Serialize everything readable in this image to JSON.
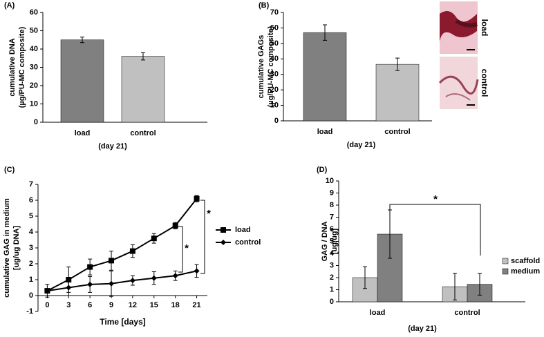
{
  "chart_data": [
    {
      "type": "bar",
      "panel": "(A)",
      "ylabel": [
        "cumulative DNA",
        "(µg/PU-MC composite)"
      ],
      "xlabel": "(day 21)",
      "categories": [
        "load",
        "control"
      ],
      "values": [
        45,
        36
      ],
      "errors": [
        1.5,
        2
      ],
      "colors": [
        "#808080",
        "#c0c0c0"
      ],
      "ylim": [
        0,
        60
      ],
      "yticks": [
        0,
        10,
        20,
        30,
        40,
        50,
        60
      ]
    },
    {
      "type": "bar",
      "panel": "(B)",
      "ylabel": [
        "cumulative GAGs",
        "(µg/PU-MC composite)"
      ],
      "xlabel": "(day 21)",
      "categories": [
        "load",
        "control"
      ],
      "values": [
        57,
        36.5
      ],
      "errors": [
        5,
        4
      ],
      "colors": [
        "#808080",
        "#c0c0c0"
      ],
      "ylim": [
        0,
        70
      ],
      "yticks": [
        0,
        10,
        20,
        30,
        40,
        50,
        60,
        70
      ],
      "image_labels": [
        "load",
        "control"
      ]
    },
    {
      "type": "line",
      "panel": "(C)",
      "ylabel": [
        "cumulative GAG in medium",
        "[ug/ug DNA]"
      ],
      "xlabel": "Time [days]",
      "x": [
        0,
        3,
        6,
        9,
        12,
        15,
        18,
        21
      ],
      "series": [
        {
          "name": "load",
          "color": "#000000",
          "marker": "square",
          "values": [
            0.3,
            1.0,
            1.8,
            2.2,
            2.8,
            3.6,
            4.4,
            6.1
          ],
          "errors": [
            0.1,
            0.8,
            0.5,
            0.6,
            0.4,
            0.3,
            0.2,
            0.2
          ]
        },
        {
          "name": "control",
          "color": "#000000",
          "marker": "diamond",
          "values": [
            0.3,
            0.5,
            0.7,
            0.75,
            0.95,
            1.1,
            1.25,
            1.55
          ],
          "errors": [
            0.4,
            0.5,
            0.5,
            0.8,
            0.3,
            0.4,
            0.3,
            0.4
          ]
        }
      ],
      "xlim": [
        -1.3,
        22.5
      ],
      "ylim": [
        -1,
        7
      ],
      "xticks": [
        0,
        3,
        6,
        9,
        12,
        15,
        18,
        21
      ],
      "yticks": [
        -1,
        0,
        1,
        2,
        3,
        4,
        5,
        6,
        7
      ],
      "annotations": [
        "*",
        "*"
      ]
    },
    {
      "type": "bar",
      "panel": "(D)",
      "ylabel": [
        "GAG / DNA",
        "[ug/ug]"
      ],
      "xlabel": "(day 21)",
      "categories": [
        "load",
        "control"
      ],
      "series": [
        {
          "name": "scaffold",
          "color": "#c0c0c0",
          "values": [
            2.0,
            1.25
          ],
          "errors": [
            0.9,
            1.1
          ]
        },
        {
          "name": "medium",
          "color": "#808080",
          "values": [
            5.6,
            1.45
          ],
          "errors": [
            2.0,
            0.9
          ]
        }
      ],
      "ylim": [
        0,
        10
      ],
      "yticks": [
        0,
        1,
        2,
        3,
        4,
        5,
        6,
        7,
        8,
        9,
        10
      ],
      "annotations": [
        "*"
      ]
    }
  ]
}
